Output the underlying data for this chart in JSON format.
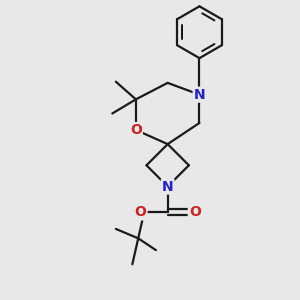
{
  "bg_color": "#e8e8e8",
  "bond_color": "#1a1a1a",
  "N_color": "#2222cc",
  "O_color": "#cc2222",
  "line_width": 1.6,
  "figsize": [
    3.0,
    3.0
  ],
  "dpi": 100,
  "xlim": [
    -0.5,
    1.1
  ],
  "ylim": [
    -1.0,
    1.5
  ]
}
